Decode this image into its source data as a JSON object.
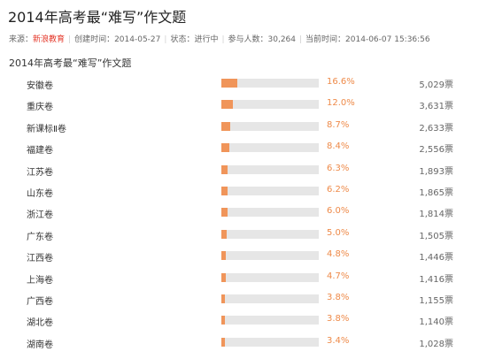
{
  "page": {
    "title": "2014年高考最“难写”作文题",
    "subtitle": "2014年高考最“难写”作文题"
  },
  "meta": {
    "source_label": "来源：",
    "source_value": "新浪教育",
    "created": "创建时间：2014-05-27",
    "status": "状态：进行中",
    "participants": "参与人数：30,264",
    "current_time": "当前时间：2014-06-07 15:36:56"
  },
  "colors": {
    "bar_fill": "#f0955a",
    "bar_track": "#e6e6e6",
    "percent_text": "#ee8a49",
    "source_link": "#e4392b"
  },
  "poll": {
    "rows": [
      {
        "label": "安徽卷",
        "share": 16.6,
        "percent": "16.6%",
        "votes": "5,029票"
      },
      {
        "label": "重庆卷",
        "share": 12.0,
        "percent": "12.0%",
        "votes": "3,631票"
      },
      {
        "label": "新课标Ⅱ卷",
        "share": 8.7,
        "percent": "8.7%",
        "votes": "2,633票"
      },
      {
        "label": "福建卷",
        "share": 8.4,
        "percent": "8.4%",
        "votes": "2,556票"
      },
      {
        "label": "江苏卷",
        "share": 6.3,
        "percent": "6.3%",
        "votes": "1,893票"
      },
      {
        "label": "山东卷",
        "share": 6.2,
        "percent": "6.2%",
        "votes": "1,865票"
      },
      {
        "label": "浙江卷",
        "share": 6.0,
        "percent": "6.0%",
        "votes": "1,814票"
      },
      {
        "label": "广东卷",
        "share": 5.0,
        "percent": "5.0%",
        "votes": "1,505票"
      },
      {
        "label": "江西卷",
        "share": 4.8,
        "percent": "4.8%",
        "votes": "1,446票"
      },
      {
        "label": "上海卷",
        "share": 4.7,
        "percent": "4.7%",
        "votes": "1,416票"
      },
      {
        "label": "广西卷",
        "share": 3.8,
        "percent": "3.8%",
        "votes": "1,155票"
      },
      {
        "label": "湖北卷",
        "share": 3.8,
        "percent": "3.8%",
        "votes": "1,140票"
      },
      {
        "label": "湖南卷",
        "share": 3.4,
        "percent": "3.4%",
        "votes": "1,028票"
      }
    ]
  }
}
